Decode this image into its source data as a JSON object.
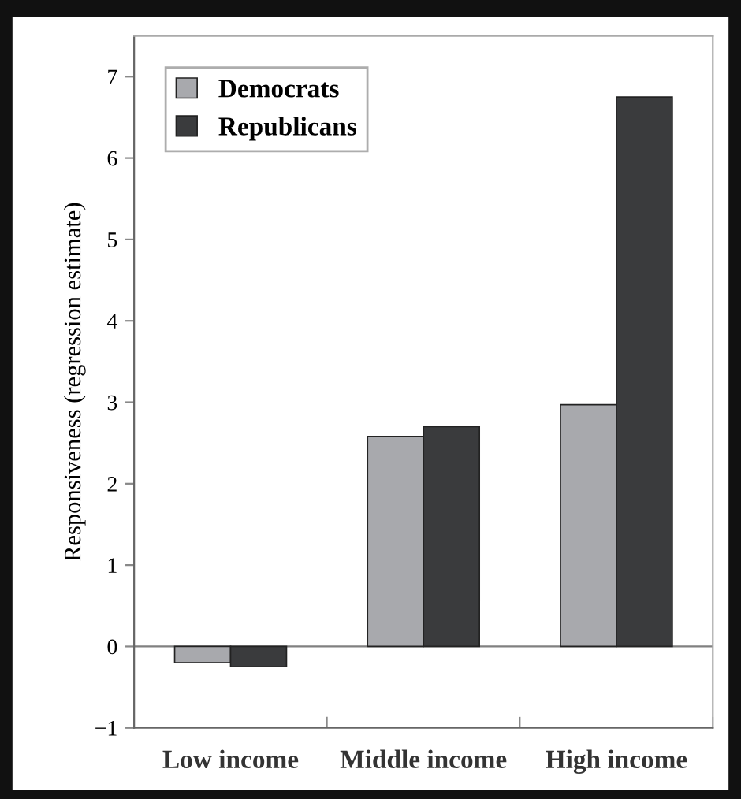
{
  "chart_data": {
    "type": "bar",
    "ylabel": "Responsiveness (regression estimate)",
    "categories": [
      "Low income",
      "Middle income",
      "High income"
    ],
    "series": [
      {
        "name": "Democrats",
        "color": "#a8a9ad",
        "values": [
          -0.2,
          2.58,
          2.97
        ]
      },
      {
        "name": "Republicans",
        "color": "#3a3b3d",
        "values": [
          -0.25,
          2.7,
          6.75
        ]
      }
    ],
    "ylim": [
      -1,
      7.5
    ],
    "yticks": [
      {
        "value": -1,
        "label": "−1"
      },
      0,
      1,
      2,
      3,
      4,
      5,
      6,
      7
    ],
    "ref_lines": [
      {
        "axis": "y",
        "value": 0,
        "color": "#808080"
      }
    ],
    "grid": false,
    "legend": "top left"
  }
}
